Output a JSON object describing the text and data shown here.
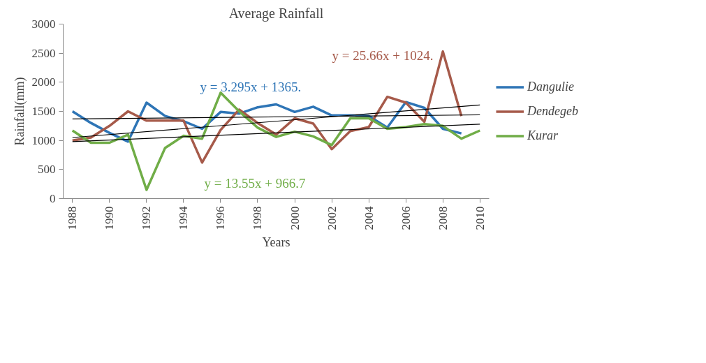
{
  "chart_data": {
    "type": "line",
    "title": "Average Rainfall",
    "xlabel": "Years",
    "ylabel": "Rainfall(mm)",
    "xlim": [
      1987.5,
      2010.5
    ],
    "xticks": [
      1988,
      1990,
      1992,
      1994,
      1996,
      1998,
      2000,
      2002,
      2004,
      2006,
      2008,
      2010
    ],
    "ylim": [
      0,
      3000
    ],
    "yticks": [
      0,
      500,
      1000,
      1500,
      2000,
      2500,
      3000
    ],
    "grid": false,
    "legend": "right",
    "marker": "none",
    "line_style": "solid",
    "series": [
      {
        "name": "Dangulie",
        "color": "#2e75b6",
        "x": [
          1988,
          1989,
          1990,
          1991,
          1992,
          1993,
          1994,
          1995,
          1996,
          1997,
          1998,
          1999,
          2000,
          2001,
          2002,
          2003,
          2004,
          2005,
          2006,
          2007,
          2008,
          2009
        ],
        "values": [
          1500,
          1300,
          1130,
          980,
          1650,
          1420,
          1330,
          1200,
          1490,
          1460,
          1570,
          1620,
          1490,
          1580,
          1430,
          1430,
          1420,
          1220,
          1660,
          1560,
          1200,
          1120
        ]
      },
      {
        "name": "Dendegeb",
        "color": "#a65a4a",
        "x": [
          1988,
          1989,
          1990,
          1991,
          1992,
          1993,
          1994,
          1995,
          1996,
          1997,
          1998,
          1999,
          2000,
          2001,
          2002,
          2003,
          2004,
          2005,
          2006,
          2007,
          2008,
          2009
        ],
        "values": [
          1000,
          1050,
          1250,
          1500,
          1340,
          1340,
          1340,
          620,
          1180,
          1530,
          1300,
          1100,
          1380,
          1290,
          850,
          1160,
          1230,
          1750,
          1650,
          1320,
          2530,
          1420
        ]
      },
      {
        "name": "Kurar",
        "color": "#70ad47",
        "x": [
          1988,
          1989,
          1990,
          1991,
          1992,
          1993,
          1994,
          1995,
          1996,
          1997,
          1998,
          1999,
          2000,
          2001,
          2002,
          2003,
          2004,
          2005,
          2006,
          2007,
          2008,
          2009,
          2010
        ],
        "values": [
          1170,
          960,
          960,
          1100,
          150,
          870,
          1080,
          1030,
          1820,
          1500,
          1220,
          1060,
          1150,
          1070,
          920,
          1380,
          1380,
          1200,
          1230,
          1280,
          1250,
          1030,
          1170
        ]
      },
      {
        "color": "#000000",
        "x": [
          1988,
          2010
        ],
        "values": [
          1370,
          1440
        ]
      },
      {
        "color": "#000000",
        "x": [
          1988,
          2010
        ],
        "values": [
          1050,
          1610
        ]
      },
      {
        "color": "#000000",
        "x": [
          1988,
          2010
        ],
        "values": [
          980,
          1280
        ]
      }
    ],
    "annotations": [
      "y = 3.295x + 1365.",
      "y = 25.66x + 1024.",
      "y = 13.55x + 966.7"
    ]
  }
}
